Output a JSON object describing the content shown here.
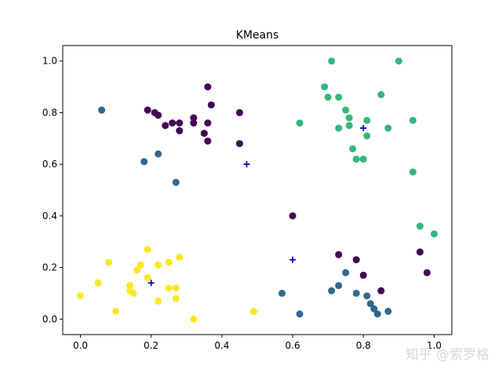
{
  "chart_data": {
    "type": "scatter",
    "title": "KMeans",
    "xlabel": "",
    "ylabel": "",
    "xlim": [
      -0.05,
      1.05
    ],
    "ylim": [
      -0.06,
      1.06
    ],
    "xticks": [
      0.0,
      0.2,
      0.4,
      0.6,
      0.8,
      1.0
    ],
    "xtick_labels": [
      "0.0",
      "0.2",
      "0.4",
      "0.6",
      "0.8",
      "1.0"
    ],
    "yticks": [
      0.0,
      0.2,
      0.4,
      0.6,
      0.8,
      1.0
    ],
    "ytick_labels": [
      "0.0",
      "0.2",
      "0.4",
      "0.6",
      "0.8",
      "1.0"
    ],
    "grid": false,
    "legend": "none",
    "clusters": [
      {
        "color": "#440154",
        "points": [
          [
            0.19,
            0.81
          ],
          [
            0.21,
            0.8
          ],
          [
            0.22,
            0.79
          ],
          [
            0.24,
            0.75
          ],
          [
            0.26,
            0.76
          ],
          [
            0.28,
            0.76
          ],
          [
            0.28,
            0.73
          ],
          [
            0.32,
            0.78
          ],
          [
            0.32,
            0.76
          ],
          [
            0.36,
            0.9
          ],
          [
            0.37,
            0.83
          ],
          [
            0.36,
            0.76
          ],
          [
            0.35,
            0.72
          ],
          [
            0.36,
            0.69
          ],
          [
            0.45,
            0.8
          ],
          [
            0.45,
            0.68
          ],
          [
            0.6,
            0.4
          ],
          [
            0.73,
            0.25
          ],
          [
            0.78,
            0.23
          ],
          [
            0.8,
            0.17
          ],
          [
            0.85,
            0.11
          ],
          [
            0.96,
            0.26
          ],
          [
            0.98,
            0.18
          ]
        ]
      },
      {
        "color": "#31688e",
        "points": [
          [
            0.06,
            0.81
          ],
          [
            0.18,
            0.61
          ],
          [
            0.22,
            0.64
          ],
          [
            0.27,
            0.53
          ],
          [
            0.57,
            0.1
          ],
          [
            0.62,
            0.02
          ],
          [
            0.71,
            0.11
          ],
          [
            0.73,
            0.13
          ],
          [
            0.75,
            0.18
          ],
          [
            0.78,
            0.1
          ],
          [
            0.81,
            0.09
          ],
          [
            0.82,
            0.06
          ],
          [
            0.83,
            0.04
          ],
          [
            0.84,
            0.02
          ],
          [
            0.87,
            0.03
          ]
        ]
      },
      {
        "color": "#35b779",
        "points": [
          [
            0.71,
            1.0
          ],
          [
            0.9,
            1.0
          ],
          [
            0.69,
            0.9
          ],
          [
            0.7,
            0.86
          ],
          [
            0.73,
            0.86
          ],
          [
            0.85,
            0.87
          ],
          [
            0.75,
            0.81
          ],
          [
            0.76,
            0.78
          ],
          [
            0.76,
            0.75
          ],
          [
            0.81,
            0.77
          ],
          [
            0.73,
            0.74
          ],
          [
            0.87,
            0.74
          ],
          [
            0.94,
            0.77
          ],
          [
            0.62,
            0.76
          ],
          [
            0.81,
            0.71
          ],
          [
            0.77,
            0.66
          ],
          [
            0.78,
            0.62
          ],
          [
            0.8,
            0.62
          ],
          [
            0.94,
            0.57
          ],
          [
            0.96,
            0.36
          ],
          [
            1.0,
            0.33
          ]
        ]
      },
      {
        "color": "#fde725",
        "points": [
          [
            0.0,
            0.09
          ],
          [
            0.05,
            0.14
          ],
          [
            0.08,
            0.22
          ],
          [
            0.1,
            0.03
          ],
          [
            0.14,
            0.13
          ],
          [
            0.14,
            0.11
          ],
          [
            0.15,
            0.1
          ],
          [
            0.16,
            0.19
          ],
          [
            0.17,
            0.21
          ],
          [
            0.19,
            0.27
          ],
          [
            0.19,
            0.16
          ],
          [
            0.22,
            0.21
          ],
          [
            0.22,
            0.07
          ],
          [
            0.25,
            0.22
          ],
          [
            0.25,
            0.12
          ],
          [
            0.27,
            0.12
          ],
          [
            0.28,
            0.24
          ],
          [
            0.27,
            0.08
          ],
          [
            0.32,
            0.0
          ],
          [
            0.49,
            0.03
          ]
        ]
      }
    ],
    "centroids": {
      "color": "#0000cd",
      "marker": "+",
      "points": [
        [
          0.2,
          0.14
        ],
        [
          0.47,
          0.6
        ],
        [
          0.6,
          0.23
        ],
        [
          0.8,
          0.74
        ]
      ]
    }
  },
  "watermark": "知乎 @索罗格"
}
